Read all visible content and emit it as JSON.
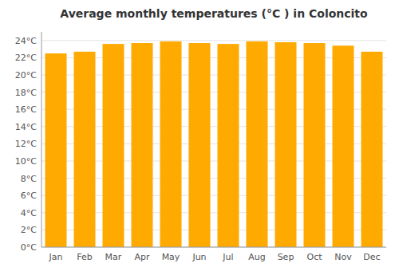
{
  "chart_data": {
    "type": "bar",
    "title": "Average monthly temperatures (°C ) in Coloncito",
    "categories": [
      "Jan",
      "Feb",
      "Mar",
      "Apr",
      "May",
      "Jun",
      "Jul",
      "Aug",
      "Sep",
      "Oct",
      "Nov",
      "Dec"
    ],
    "values": [
      22.5,
      22.7,
      23.6,
      23.7,
      23.9,
      23.7,
      23.6,
      23.9,
      23.8,
      23.7,
      23.4,
      22.7
    ],
    "color": "#FFAA00",
    "ylim": [
      0,
      25
    ],
    "yticks": [
      {
        "value": 0,
        "label": "0°C"
      },
      {
        "value": 2,
        "label": "2°C"
      },
      {
        "value": 4,
        "label": "4°C"
      },
      {
        "value": 6,
        "label": "6°C"
      },
      {
        "value": 8,
        "label": "8°C"
      },
      {
        "value": 10,
        "label": "10°C"
      },
      {
        "value": 12,
        "label": "12°C"
      },
      {
        "value": 14,
        "label": "14°C"
      },
      {
        "value": 16,
        "label": "16°C"
      },
      {
        "value": 18,
        "label": "18°C"
      },
      {
        "value": 20,
        "label": "20°C"
      },
      {
        "value": 22,
        "label": "22°C"
      },
      {
        "value": 24,
        "label": "24°C"
      }
    ],
    "grid": true
  }
}
